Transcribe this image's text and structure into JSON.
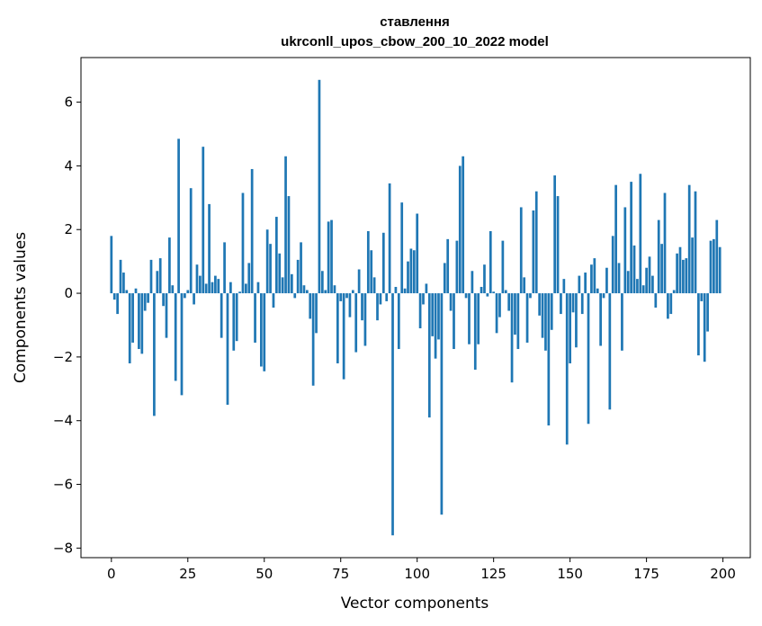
{
  "chart_data": {
    "type": "bar",
    "title_lines": [
      "ставлення",
      "ukrconll_upos_cbow_200_10_2022 model"
    ],
    "xlabel": "Vector components",
    "ylabel": "Components values",
    "xlim": [
      -9.95,
      208.95
    ],
    "ylim": [
      -8.3,
      7.4
    ],
    "xticks": [
      0,
      25,
      50,
      75,
      100,
      125,
      150,
      175,
      200
    ],
    "xtick_labels": [
      "0",
      "25",
      "50",
      "75",
      100,
      125,
      150,
      175,
      200
    ],
    "yticks": [
      -8,
      -6,
      -4,
      -2,
      0,
      2,
      4,
      6
    ],
    "ytick_labels": [
      "−8",
      "−6",
      "−4",
      "−2",
      "0",
      "2",
      "4",
      "6"
    ],
    "grid": false,
    "bar_color": "#1f77b4",
    "x": [
      0,
      1,
      2,
      3,
      4,
      5,
      6,
      7,
      8,
      9,
      10,
      11,
      12,
      13,
      14,
      15,
      16,
      17,
      18,
      19,
      20,
      21,
      22,
      23,
      24,
      25,
      26,
      27,
      28,
      29,
      30,
      31,
      32,
      33,
      34,
      35,
      36,
      37,
      38,
      39,
      40,
      41,
      42,
      43,
      44,
      45,
      46,
      47,
      48,
      49,
      50,
      51,
      52,
      53,
      54,
      55,
      56,
      57,
      58,
      59,
      60,
      61,
      62,
      63,
      64,
      65,
      66,
      67,
      68,
      69,
      70,
      71,
      72,
      73,
      74,
      75,
      76,
      77,
      78,
      79,
      80,
      81,
      82,
      83,
      84,
      85,
      86,
      87,
      88,
      89,
      90,
      91,
      92,
      93,
      94,
      95,
      96,
      97,
      98,
      99,
      100,
      101,
      102,
      103,
      104,
      105,
      106,
      107,
      108,
      109,
      110,
      111,
      112,
      113,
      114,
      115,
      116,
      117,
      118,
      119,
      120,
      121,
      122,
      123,
      124,
      125,
      126,
      127,
      128,
      129,
      130,
      131,
      132,
      133,
      134,
      135,
      136,
      137,
      138,
      139,
      140,
      141,
      142,
      143,
      144,
      145,
      146,
      147,
      148,
      149,
      150,
      151,
      152,
      153,
      154,
      155,
      156,
      157,
      158,
      159,
      160,
      161,
      162,
      163,
      164,
      165,
      166,
      167,
      168,
      169,
      170,
      171,
      172,
      173,
      174,
      175,
      176,
      177,
      178,
      179,
      180,
      181,
      182,
      183,
      184,
      185,
      186,
      187,
      188,
      189,
      190,
      191,
      192,
      193,
      194,
      195,
      196,
      197,
      198,
      199
    ],
    "values": [
      1.8,
      -0.2,
      -0.65,
      1.05,
      0.65,
      0.1,
      -2.2,
      -1.55,
      0.15,
      -1.75,
      -1.9,
      -0.55,
      -0.3,
      1.05,
      -3.85,
      0.7,
      1.1,
      -0.4,
      -1.4,
      1.75,
      0.25,
      -2.75,
      4.85,
      -3.2,
      -0.15,
      0.1,
      3.3,
      -0.35,
      0.9,
      0.55,
      4.6,
      0.3,
      2.8,
      0.35,
      0.55,
      0.45,
      -1.4,
      1.6,
      -3.5,
      0.35,
      -1.8,
      -1.5,
      0.05,
      3.15,
      0.3,
      0.95,
      3.9,
      -1.55,
      0.35,
      -2.3,
      -2.45,
      2.0,
      1.55,
      -0.45,
      2.4,
      1.25,
      0.5,
      4.3,
      3.05,
      0.6,
      -0.15,
      1.05,
      1.6,
      0.25,
      0.1,
      -0.8,
      -2.9,
      -1.25,
      6.7,
      0.7,
      0.1,
      2.25,
      2.3,
      0.25,
      -2.2,
      -0.25,
      -2.7,
      -0.15,
      -0.75,
      0.1,
      -1.85,
      0.75,
      -0.85,
      -1.65,
      1.95,
      1.35,
      0.5,
      -0.85,
      -0.35,
      1.9,
      -0.25,
      3.45,
      -7.6,
      0.2,
      -1.75,
      2.85,
      0.15,
      1.0,
      1.4,
      1.35,
      2.5,
      -1.1,
      -0.35,
      0.3,
      -3.9,
      -1.35,
      -2.05,
      -1.45,
      -6.95,
      0.95,
      1.7,
      -0.55,
      -1.75,
      1.65,
      4.0,
      4.3,
      -0.15,
      -1.6,
      0.7,
      -2.4,
      -1.6,
      0.2,
      0.9,
      -0.1,
      1.95,
      0.05,
      -1.25,
      -0.75,
      1.65,
      0.1,
      -0.55,
      -2.8,
      -1.3,
      -1.75,
      2.7,
      0.5,
      -1.55,
      -0.15,
      2.6,
      3.2,
      -0.7,
      -1.4,
      -1.8,
      -4.15,
      -1.15,
      3.7,
      3.05,
      -0.65,
      0.45,
      -4.75,
      -2.2,
      -0.6,
      -1.7,
      0.55,
      -0.65,
      0.65,
      -4.1,
      0.9,
      1.1,
      0.15,
      -1.65,
      -0.15,
      0.8,
      -3.65,
      1.8,
      3.4,
      0.95,
      -1.8,
      2.7,
      0.7,
      3.5,
      1.5,
      0.45,
      3.75,
      0.25,
      0.8,
      1.15,
      0.55,
      -0.45,
      2.3,
      1.55,
      3.15,
      -0.8,
      -0.65,
      0.1,
      1.25,
      1.45,
      1.05,
      1.1,
      3.4,
      1.75,
      3.2,
      -1.95,
      -0.25,
      -2.15,
      -1.2,
      1.65,
      1.7,
      2.3,
      1.45
    ]
  }
}
